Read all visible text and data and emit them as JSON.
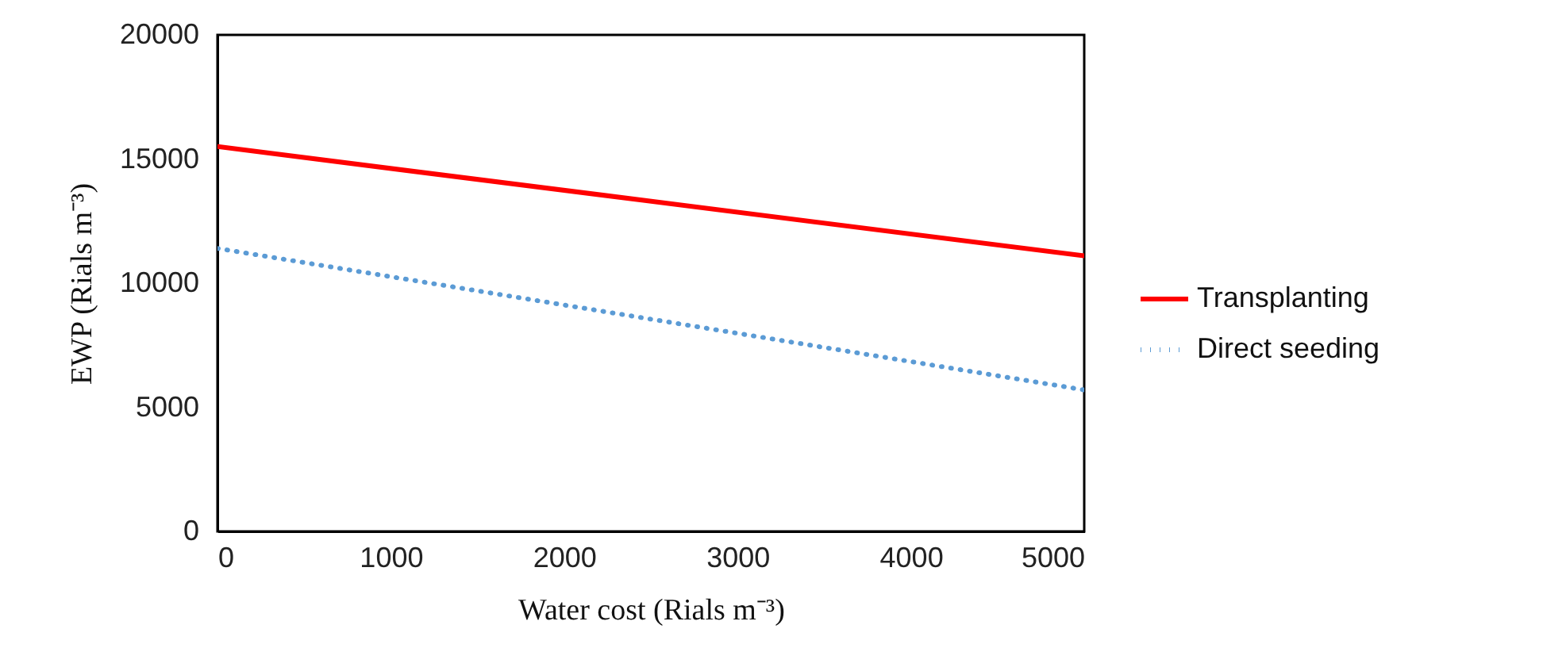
{
  "chart_data": {
    "type": "line",
    "xlabel": "Water cost (Rials m⁻³)",
    "ylabel": "EWP (Rials m⁻³)",
    "x": [
      0,
      5000
    ],
    "series": [
      {
        "name": "Transplanting",
        "color": "#ff0000",
        "line_style": "solid",
        "values": [
          15500,
          11100
        ]
      },
      {
        "name": "Direct seeding",
        "color": "#5b9bd5",
        "line_style": "dotted",
        "values": [
          11400,
          5700
        ]
      }
    ],
    "xlim": [
      0,
      5000
    ],
    "xticks": [
      0,
      1000,
      2000,
      3000,
      4000,
      5000
    ],
    "ylim": [
      0,
      20000
    ],
    "yticks": [
      0,
      5000,
      10000,
      15000,
      20000
    ],
    "grid": false,
    "legend": "right",
    "marker": "none"
  }
}
